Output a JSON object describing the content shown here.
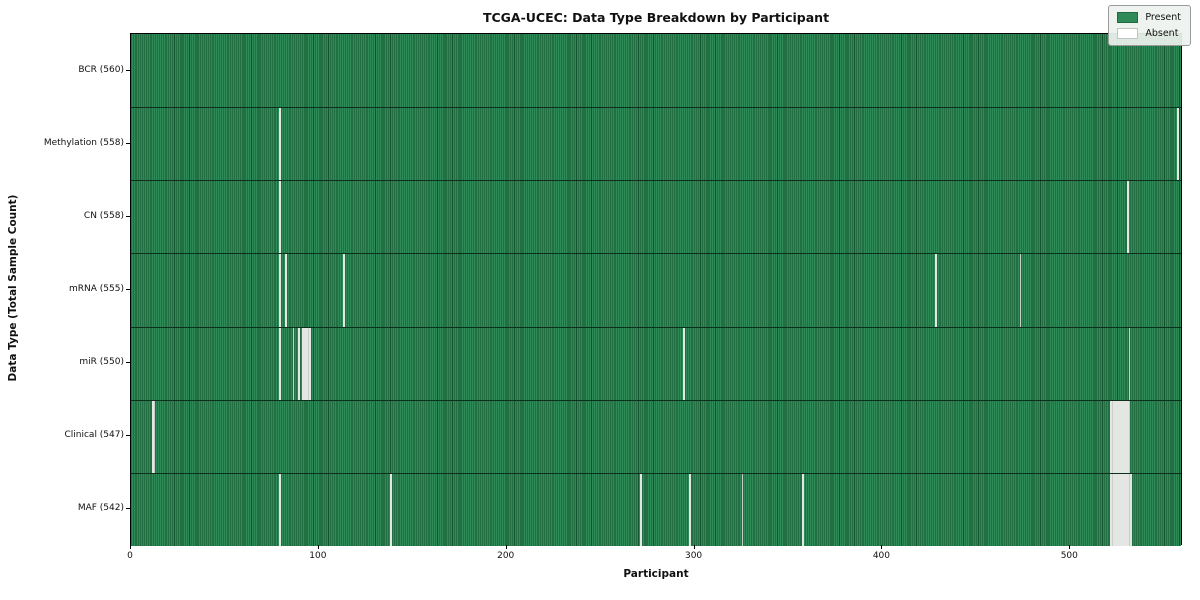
{
  "title": "TCGA-UCEC: Data Type Breakdown by Participant",
  "axes": {
    "xlabel": "Participant",
    "ylabel": "Data Type (Total Sample Count)"
  },
  "legend": {
    "present_label": "Present",
    "absent_label": "Absent"
  },
  "chart_data": {
    "type": "heatmap",
    "title": "TCGA-UCEC: Data Type Breakdown by Participant",
    "xlabel": "Participant",
    "ylabel": "Data Type (Total Sample Count)",
    "n_participants": 560,
    "x_range": [
      0,
      560
    ],
    "x_ticks": [
      0,
      100,
      200,
      300,
      400,
      500
    ],
    "grid": false,
    "legend_position": "upper-right",
    "legend_entries": [
      {
        "label": "Present",
        "color": "#2e8b57"
      },
      {
        "label": "Absent",
        "color": "#ffffff"
      }
    ],
    "colors": {
      "present": "#2e8b57",
      "present_edge": "#14532d",
      "absent": "#ffffff",
      "absent_edge": "#c9cec9"
    },
    "rows": [
      {
        "label": "BCR (560)",
        "data_type": "BCR",
        "present_count": 560,
        "absent_participants": []
      },
      {
        "label": "Methylation (558)",
        "data_type": "Methylation",
        "present_count": 558,
        "absent_participants": [
          79,
          557
        ]
      },
      {
        "label": "CN (558)",
        "data_type": "CN",
        "present_count": 558,
        "absent_participants": [
          79,
          530
        ]
      },
      {
        "label": "mRNA (555)",
        "data_type": "mRNA",
        "present_count": 555,
        "absent_participants": [
          79,
          82,
          113,
          428,
          473
        ]
      },
      {
        "label": "miR (550)",
        "data_type": "miR",
        "present_count": 550,
        "absent_participants": [
          79,
          86,
          89,
          91,
          92,
          93,
          94,
          95,
          294,
          531
        ]
      },
      {
        "label": "Clinical (547)",
        "data_type": "Clinical",
        "present_count": 547,
        "absent_participants": [
          11,
          12,
          521,
          522,
          523,
          524,
          525,
          526,
          527,
          528,
          529,
          530,
          531
        ]
      },
      {
        "label": "MAF (542)",
        "data_type": "MAF",
        "present_count": 542,
        "absent_participants": [
          79,
          138,
          271,
          297,
          325,
          357,
          521,
          522,
          523,
          524,
          525,
          526,
          527,
          528,
          529,
          530,
          531,
          532
        ]
      }
    ]
  }
}
